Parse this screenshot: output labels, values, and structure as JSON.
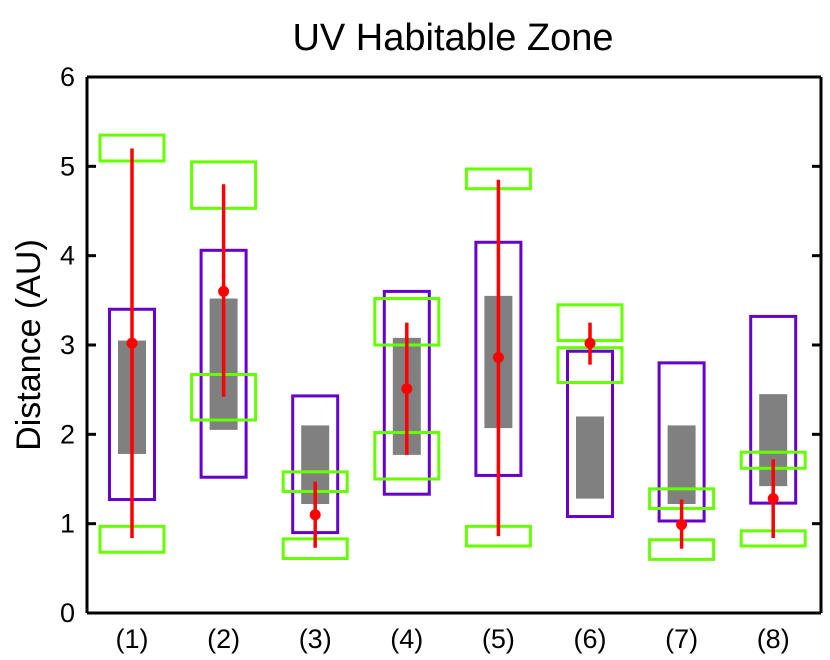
{
  "chart_data": {
    "type": "box-range",
    "title": "UV Habitable Zone",
    "xlabel": "",
    "ylabel": "Distance (AU)",
    "ylim": [
      0,
      6
    ],
    "yticks": [
      "0",
      "1",
      "2",
      "3",
      "4",
      "5",
      "6"
    ],
    "categories": [
      "(1)",
      "(2)",
      "(3)",
      "(4)",
      "(5)",
      "(6)",
      "(7)",
      "(8)"
    ],
    "colors": {
      "purple": "#6600cc",
      "green": "#66ff00",
      "gray": "#808080",
      "red": "#ff0000",
      "axis": "#000000"
    },
    "purple_ranges": [
      [
        1.27,
        3.4
      ],
      [
        1.52,
        4.06
      ],
      [
        0.9,
        2.43
      ],
      [
        1.33,
        3.6
      ],
      [
        1.54,
        4.15
      ],
      [
        1.08,
        2.93
      ],
      [
        1.03,
        2.8
      ],
      [
        1.23,
        3.32
      ]
    ],
    "gray_ranges": [
      [
        1.78,
        3.05
      ],
      [
        2.05,
        3.52
      ],
      [
        1.22,
        2.1
      ],
      [
        1.77,
        3.08
      ],
      [
        2.07,
        3.55
      ],
      [
        1.28,
        2.2
      ],
      [
        1.22,
        2.1
      ],
      [
        1.42,
        2.45
      ]
    ],
    "green_boxes": [
      [
        [
          0.68,
          0.97
        ],
        [
          5.06,
          5.35
        ]
      ],
      [
        [
          2.16,
          2.67
        ],
        [
          4.53,
          5.05
        ]
      ],
      [
        [
          0.61,
          0.83
        ],
        [
          1.36,
          1.58
        ]
      ],
      [
        [
          1.5,
          2.02
        ],
        [
          3.0,
          3.52
        ]
      ],
      [
        [
          0.75,
          0.97
        ],
        [
          4.75,
          4.97
        ]
      ],
      [
        [
          2.58,
          2.97
        ],
        [
          3.05,
          3.45
        ]
      ],
      [
        [
          0.6,
          0.82
        ],
        [
          1.17,
          1.39
        ]
      ],
      [
        [
          0.75,
          0.92
        ],
        [
          1.62,
          1.8
        ]
      ]
    ],
    "red_points": [
      3.02,
      3.6,
      1.1,
      2.51,
      2.86,
      3.02,
      0.99,
      1.28
    ],
    "red_errors": [
      [
        0.84,
        5.2
      ],
      [
        2.42,
        4.8
      ],
      [
        0.73,
        1.47
      ],
      [
        1.77,
        3.25
      ],
      [
        0.86,
        4.85
      ],
      [
        2.78,
        3.25
      ],
      [
        0.72,
        1.27
      ],
      [
        0.84,
        1.72
      ]
    ]
  }
}
